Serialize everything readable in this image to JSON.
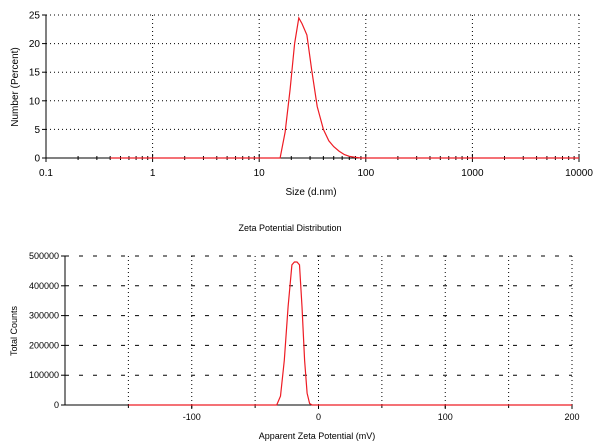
{
  "chart_data": [
    {
      "type": "line",
      "title": "",
      "xlabel": "Size (d.nm)",
      "ylabel": "Number (Percent)",
      "x_scale": "log",
      "xlim": [
        0.1,
        10000
      ],
      "ylim": [
        0,
        25
      ],
      "x_ticks": [
        0.1,
        1,
        10,
        100,
        1000,
        10000
      ],
      "x_tick_labels": [
        "0.1",
        "1",
        "10",
        "100",
        "1000",
        "10000"
      ],
      "y_ticks": [
        0,
        5,
        10,
        15,
        20,
        25
      ],
      "y_tick_labels": [
        "0",
        "5",
        "10",
        "15",
        "20",
        "25"
      ],
      "grid": true,
      "series": [
        {
          "color": "#ee1c24",
          "x": [
            0.4,
            1,
            5,
            10,
            15.7,
            17.5,
            19.5,
            21.5,
            23.5,
            25.2,
            28,
            31,
            35,
            40,
            45,
            50,
            56,
            63,
            70,
            80,
            90,
            100,
            150,
            1000,
            10000
          ],
          "y": [
            0,
            0,
            0,
            0,
            0,
            4.5,
            12,
            20,
            24.5,
            23.5,
            21.5,
            15.5,
            9,
            5,
            3,
            2,
            1.2,
            0.6,
            0.3,
            0.1,
            0,
            0,
            0,
            0,
            0
          ]
        }
      ]
    },
    {
      "type": "line",
      "title": "Zeta Potential Distribution",
      "xlabel": "Apparent Zeta Potential (mV)",
      "ylabel": "Total Counts",
      "xlim": [
        -200,
        200
      ],
      "ylim": [
        0,
        500000
      ],
      "x_ticks": [
        -100,
        0,
        100,
        200
      ],
      "x_tick_labels": [
        "-100",
        "0",
        "100",
        "200"
      ],
      "y_ticks": [
        0,
        100000,
        200000,
        300000,
        400000,
        500000
      ],
      "y_tick_labels": [
        "0",
        "100000",
        "200000",
        "300000",
        "400000",
        "500000"
      ],
      "grid": true,
      "series": [
        {
          "color": "#ee1c24",
          "x": [
            -150,
            -40,
            -33,
            -30,
            -27,
            -24,
            -21,
            -19,
            -17,
            -15,
            -13,
            -11,
            -9,
            -7,
            -5,
            200
          ],
          "y": [
            0,
            0,
            0,
            30000,
            150000,
            330000,
            470000,
            480000,
            480000,
            470000,
            330000,
            150000,
            40000,
            5000,
            0,
            0
          ]
        }
      ]
    }
  ]
}
